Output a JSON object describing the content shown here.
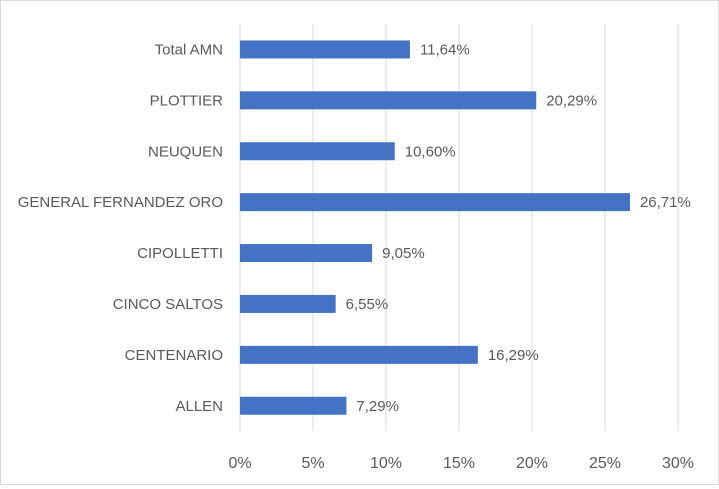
{
  "chart_data": {
    "type": "bar",
    "orientation": "horizontal",
    "categories": [
      "Total AMN",
      "PLOTTIER",
      "NEUQUEN",
      "GENERAL FERNANDEZ ORO",
      "CIPOLLETTI",
      "CINCO SALTOS",
      "CENTENARIO",
      "ALLEN"
    ],
    "values": [
      11.64,
      20.29,
      10.6,
      26.71,
      9.05,
      6.55,
      16.29,
      7.29
    ],
    "data_labels": [
      "11,64%",
      "20,29%",
      "10,60%",
      "26,71%",
      "9,05%",
      "6,55%",
      "16,29%",
      "7,29%"
    ],
    "xlim": [
      0,
      30
    ],
    "x_ticks": [
      0,
      5,
      10,
      15,
      20,
      25,
      30
    ],
    "x_tick_labels": [
      "0%",
      "5%",
      "10%",
      "15%",
      "20%",
      "25%",
      "30%"
    ],
    "title": "",
    "xlabel": "",
    "ylabel": "",
    "grid": "vertical",
    "legend": "none",
    "bar_color": "#4472c4",
    "grid_color": "#d9d9d9",
    "text_color": "#595959"
  }
}
